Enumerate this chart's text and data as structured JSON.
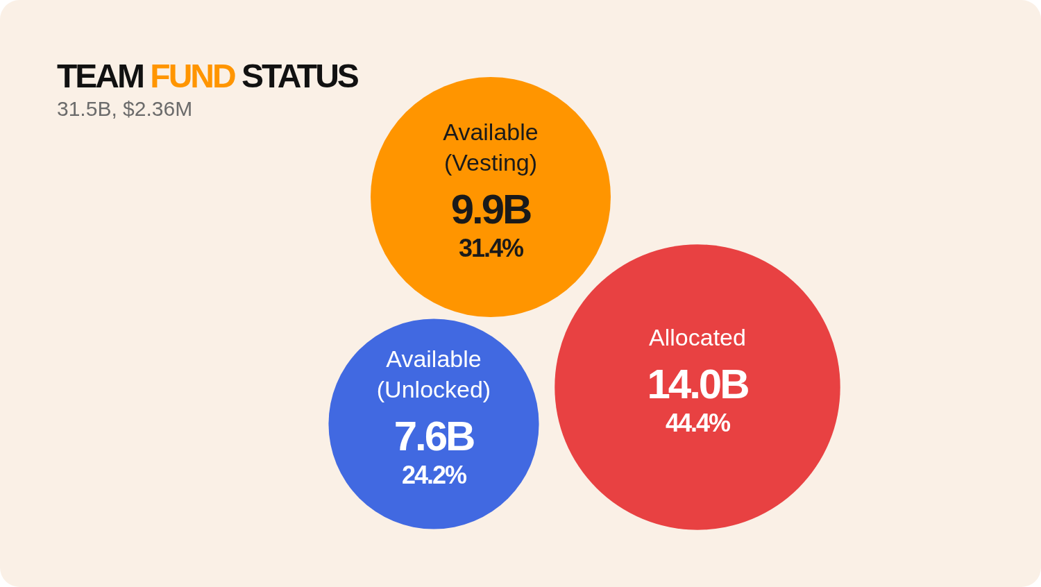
{
  "chart_data": {
    "type": "other",
    "title": "TEAM FUND STATUS",
    "subtitle": "31.5B, $2.36M",
    "categories": [
      "Available (Vesting)",
      "Allocated",
      "Available (Unlocked)"
    ],
    "series": [
      {
        "values": [
          9.9,
          14.0,
          7.6
        ],
        "colors": [
          "#ff9500",
          "#e84142",
          "#4169e1"
        ],
        "value_labels": [
          "9.9B",
          "14.0B",
          "7.6B"
        ]
      },
      {
        "values": [
          31.4,
          44.4,
          24.2
        ],
        "value_labels": [
          "31.4%",
          "44.4%",
          "24.2%"
        ]
      }
    ]
  }
}
